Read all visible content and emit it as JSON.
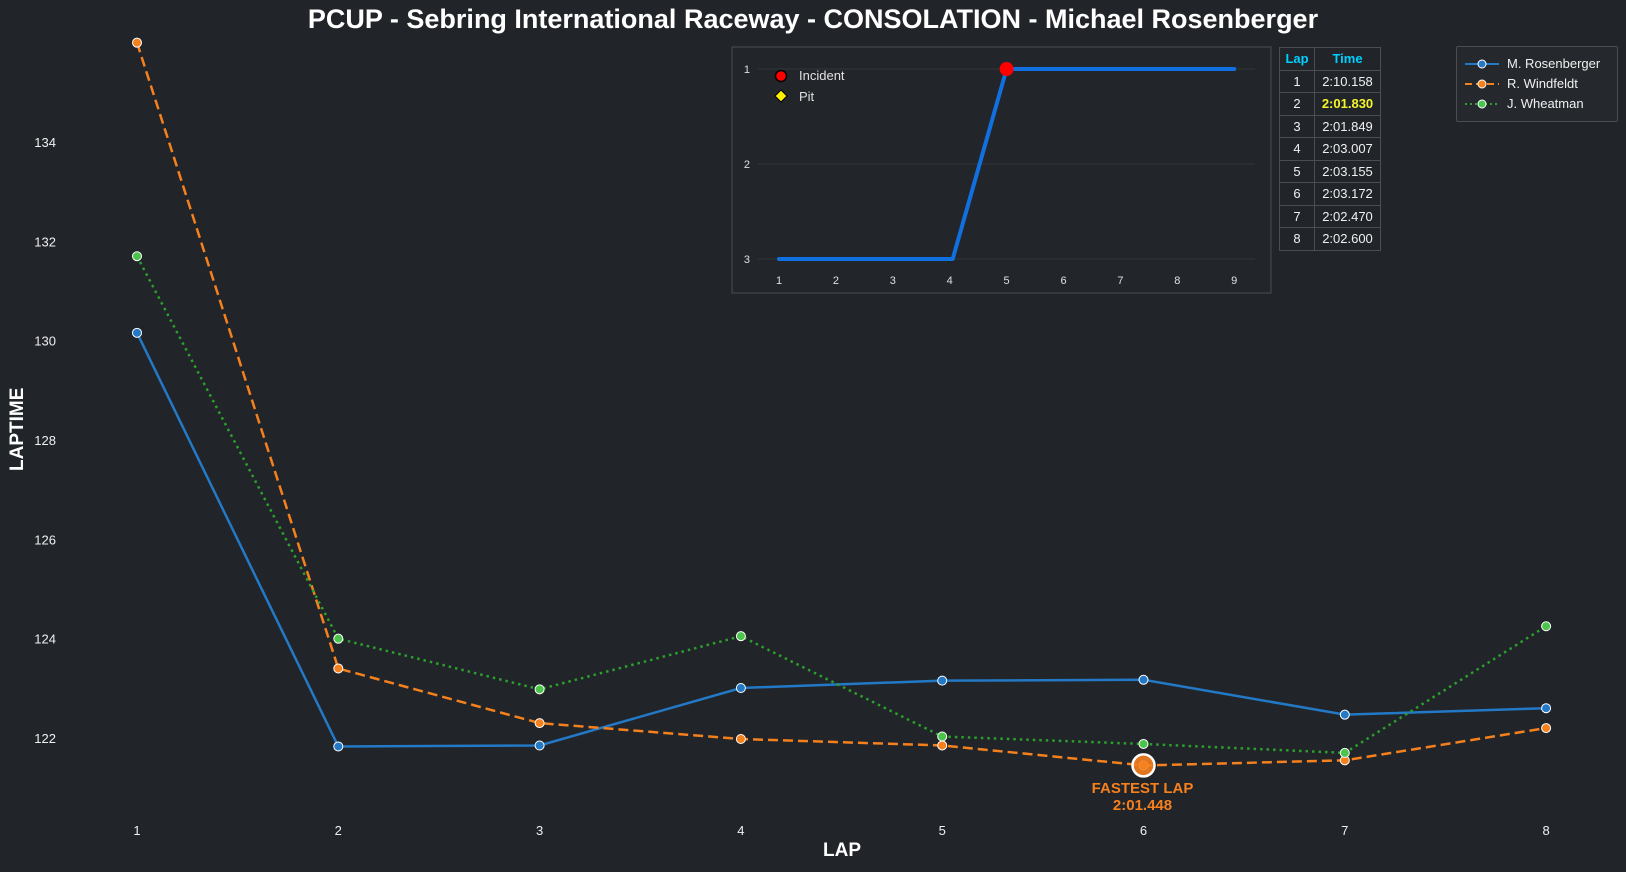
{
  "title": "PCUP - Sebring International Raceway - CONSOLATION - Michael Rosenberger",
  "chart_data": [
    {
      "type": "line",
      "xlabel": "LAP",
      "ylabel": "LAPTIME",
      "x": [
        1,
        2,
        3,
        4,
        5,
        6,
        7,
        8
      ],
      "xlim": [
        0.5,
        8.5
      ],
      "ylim": [
        120.4,
        136
      ],
      "yticks": [
        122,
        124,
        126,
        128,
        130,
        132,
        134
      ],
      "grid": false,
      "legend_position": "top-right",
      "series": [
        {
          "name": "M. Rosenberger",
          "color": "#2379c5",
          "style": "solid",
          "values": [
            130.158,
            121.83,
            121.849,
            123.007,
            123.155,
            123.172,
            122.47,
            122.6
          ]
        },
        {
          "name": "R. Windfeldt",
          "color": "#f5801e",
          "style": "dashed",
          "values": [
            136.0,
            123.4,
            122.3,
            121.98,
            121.85,
            121.448,
            121.55,
            122.2
          ]
        },
        {
          "name": "J. Wheatman",
          "color": "#2ca02c",
          "style": "dotted",
          "values": [
            131.7,
            124.0,
            122.98,
            124.05,
            122.03,
            121.88,
            121.7,
            124.25
          ]
        }
      ],
      "annotation": {
        "text_line1": "FASTEST LAP",
        "text_line2": "2:01.448",
        "x": 6,
        "y": 121.448
      }
    },
    {
      "type": "line",
      "x": [
        1,
        2,
        3,
        4,
        5,
        6,
        7,
        8,
        9
      ],
      "values": [
        3,
        3,
        3,
        3,
        1,
        1,
        1,
        1,
        1
      ],
      "yticks": [
        1,
        2,
        3
      ],
      "ylim_inverted": [
        1,
        3
      ],
      "color": "#1170e0",
      "incident_marker": {
        "x": 5,
        "y": 1,
        "color": "#ff0000"
      },
      "legend": [
        {
          "label": "Incident",
          "marker": "circle",
          "color": "#ff0000"
        },
        {
          "label": "Pit",
          "marker": "diamond",
          "color": "#ffee00"
        }
      ]
    },
    {
      "type": "table",
      "headers": [
        "Lap",
        "Time"
      ],
      "rows": [
        [
          "1",
          "2:10.158"
        ],
        [
          "2",
          "2:01.830"
        ],
        [
          "3",
          "2:01.849"
        ],
        [
          "4",
          "2:03.007"
        ],
        [
          "5",
          "2:03.155"
        ],
        [
          "6",
          "2:03.172"
        ],
        [
          "7",
          "2:02.470"
        ],
        [
          "8",
          "2:02.600"
        ]
      ],
      "best_row": 2
    }
  ]
}
